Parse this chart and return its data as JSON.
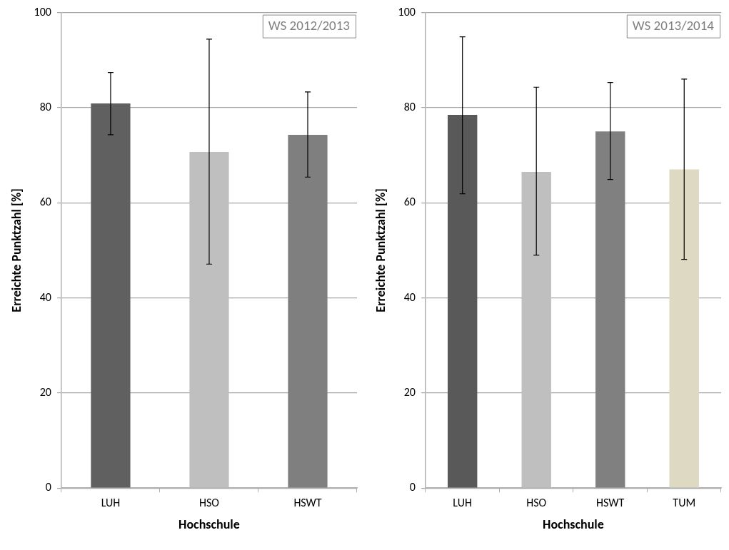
{
  "chart_data": [
    {
      "type": "bar",
      "categories": [
        "LUH",
        "HSO",
        "HSWT"
      ],
      "values": [
        80.9,
        70.7,
        74.3
      ],
      "colors": [
        "#606060",
        "#bfbfbf",
        "#7f7f7f"
      ],
      "errors": [
        [
          74.3,
          87.4
        ],
        [
          47.1,
          94.4
        ],
        [
          65.4,
          83.3
        ]
      ],
      "xlabel": "Hochschule",
      "ylabel": "Erreichte Punktzahl [%]",
      "annotations": [
        "WS 2012/2013"
      ],
      "ylim": [
        0,
        100
      ],
      "yticks": [
        0,
        20,
        40,
        60,
        80,
        100
      ],
      "grid": "y",
      "legend": false
    },
    {
      "type": "bar",
      "categories": [
        "LUH",
        "HSO",
        "HSWT",
        "TUM"
      ],
      "values": [
        78.5,
        66.5,
        75.0,
        67.0
      ],
      "colors": [
        "#595959",
        "#bfbfbf",
        "#808080",
        "#ddd9c3"
      ],
      "errors": [
        [
          61.9,
          94.9
        ],
        [
          49.0,
          84.3
        ],
        [
          64.9,
          85.3
        ],
        [
          48.1,
          86.0
        ]
      ],
      "xlabel": "Hochschule",
      "ylabel": "Erreichte Punktzahl [%]",
      "annotations": [
        "WS 2013/2014"
      ],
      "ylim": [
        0,
        100
      ],
      "yticks": [
        0,
        20,
        40,
        60,
        80,
        100
      ],
      "grid": "y",
      "legend": false
    }
  ]
}
